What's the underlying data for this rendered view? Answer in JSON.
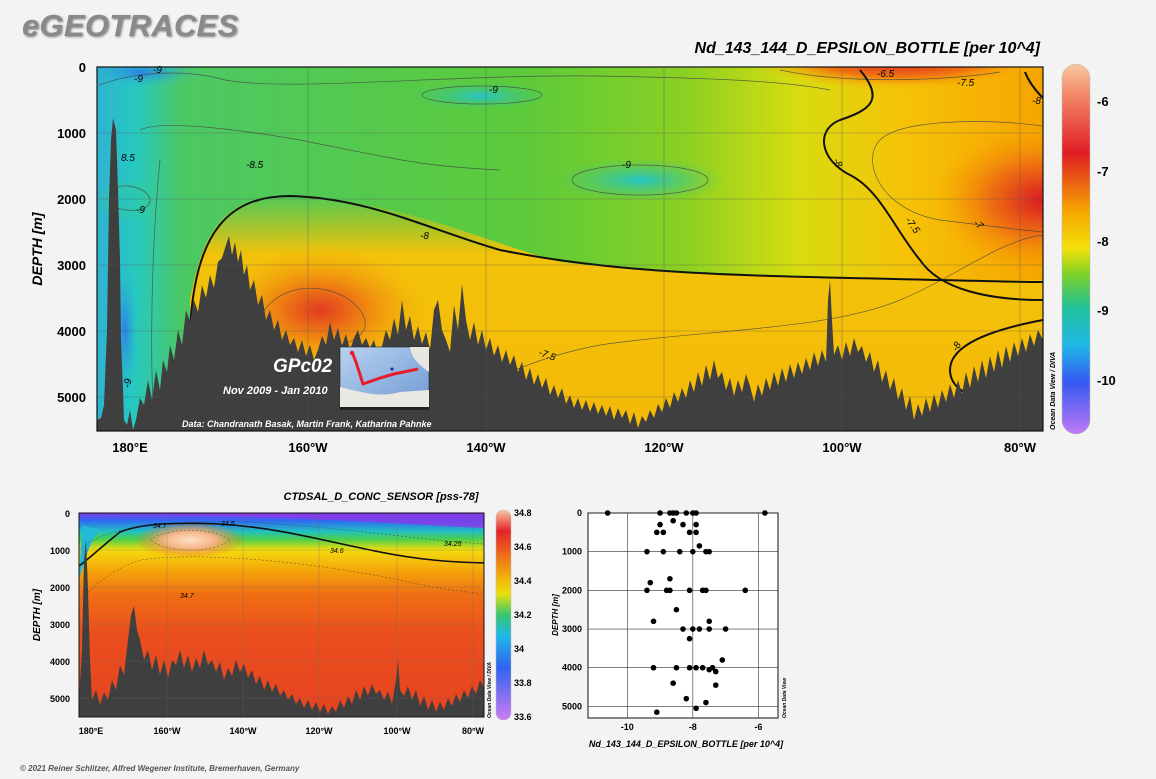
{
  "brand": "eGEOTRACES",
  "footer": "© 2021 Reiner Schlitzer, Alfred Wegener Institute, Bremerhaven, Germany",
  "chart_data": [
    {
      "type": "heatmap",
      "title": "Nd_143_144_D_EPSILON_BOTTLE [per 10^4]",
      "ylabel": "DEPTH [m]",
      "xlabel": "",
      "x_ticks": [
        "180°E",
        "160°W",
        "140°W",
        "120°W",
        "100°W",
        "80°W"
      ],
      "y_ticks": [
        0,
        1000,
        2000,
        3000,
        4000,
        5000
      ],
      "ylim": [
        5500,
        0
      ],
      "y_inverted": true,
      "colorbar": {
        "ticks": [
          -6,
          -7,
          -8,
          -9,
          -10
        ],
        "range": [
          -10.5,
          -5.6
        ]
      },
      "contour_labels": [
        "-9",
        "-9",
        "-9",
        "-9",
        "-6.5",
        "-7.5",
        "-8",
        "8.5",
        "-8.5",
        "-9",
        "-8",
        "-8",
        "-7.5",
        "-7",
        "-8",
        "-7.5",
        "-9"
      ],
      "station_label": "GPc02",
      "date_range": "Nov 2009 - Jan 2010",
      "data_credit": "Data: Chandranath Basak, Martin Frank, Katharina Pahnke",
      "side_label": "Ocean Data View / DIVA"
    },
    {
      "type": "heatmap",
      "title": "CTDSAL_D_CONC_SENSOR [pss-78]",
      "ylabel": "DEPTH [m]",
      "x_ticks": [
        "180°E",
        "160°W",
        "140°W",
        "120°W",
        "100°W",
        "80°W"
      ],
      "y_ticks": [
        0,
        1000,
        2000,
        3000,
        4000,
        5000
      ],
      "ylim": [
        5500,
        0
      ],
      "y_inverted": true,
      "colorbar": {
        "ticks": [
          34.8,
          34.6,
          34.4,
          34.2,
          34,
          33.8,
          33.6
        ],
        "range": [
          33.6,
          34.8
        ]
      },
      "contour_labels": [
        "34.7",
        "34.5",
        "34.6",
        "34.25",
        "34.7"
      ],
      "side_label": "Ocean Data View / DIVA"
    },
    {
      "type": "scatter",
      "xlabel": "Nd_143_144_D_EPSILON_BOTTLE [per 10^4]",
      "ylabel": "DEPTH [m]",
      "x_ticks": [
        -10,
        -8,
        -6
      ],
      "xlim": [
        -11.2,
        -5.4
      ],
      "y_ticks": [
        0,
        1000,
        2000,
        3000,
        4000,
        5000
      ],
      "ylim": [
        5300,
        0
      ],
      "y_inverted": true,
      "side_label": "Ocean Data View",
      "points": [
        [
          -10.6,
          0
        ],
        [
          -5.8,
          0
        ],
        [
          -9.0,
          0
        ],
        [
          -8.7,
          0
        ],
        [
          -8.6,
          0
        ],
        [
          -8.5,
          0
        ],
        [
          -8.2,
          0
        ],
        [
          -8.0,
          0
        ],
        [
          -7.9,
          0
        ],
        [
          -9.0,
          300
        ],
        [
          -8.3,
          300
        ],
        [
          -7.9,
          300
        ],
        [
          -9.1,
          500
        ],
        [
          -8.9,
          500
        ],
        [
          -8.1,
          500
        ],
        [
          -7.9,
          500
        ],
        [
          -8.6,
          200
        ],
        [
          -9.4,
          1000
        ],
        [
          -8.9,
          1000
        ],
        [
          -8.4,
          1000
        ],
        [
          -7.6,
          1000
        ],
        [
          -7.5,
          1000
        ],
        [
          -8.0,
          1000
        ],
        [
          -7.8,
          850
        ],
        [
          -9.3,
          1800
        ],
        [
          -8.7,
          1700
        ],
        [
          -9.4,
          2000
        ],
        [
          -8.8,
          2000
        ],
        [
          -8.7,
          2000
        ],
        [
          -8.1,
          2000
        ],
        [
          -7.7,
          2000
        ],
        [
          -7.6,
          2000
        ],
        [
          -6.4,
          2000
        ],
        [
          -8.5,
          2500
        ],
        [
          -9.2,
          2800
        ],
        [
          -7.5,
          2800
        ],
        [
          -8.3,
          3000
        ],
        [
          -8.0,
          3000
        ],
        [
          -7.8,
          3000
        ],
        [
          -7.5,
          3000
        ],
        [
          -7.0,
          3000
        ],
        [
          -8.1,
          3250
        ],
        [
          -9.2,
          4000
        ],
        [
          -8.5,
          4000
        ],
        [
          -8.1,
          4000
        ],
        [
          -7.9,
          4000
        ],
        [
          -7.7,
          4000
        ],
        [
          -7.5,
          4050
        ],
        [
          -7.4,
          4000
        ],
        [
          -7.3,
          4100
        ],
        [
          -7.1,
          3800
        ],
        [
          -8.6,
          4400
        ],
        [
          -7.3,
          4450
        ],
        [
          -8.2,
          4800
        ],
        [
          -7.6,
          4900
        ],
        [
          -9.1,
          5150
        ],
        [
          -7.9,
          5050
        ]
      ]
    }
  ]
}
